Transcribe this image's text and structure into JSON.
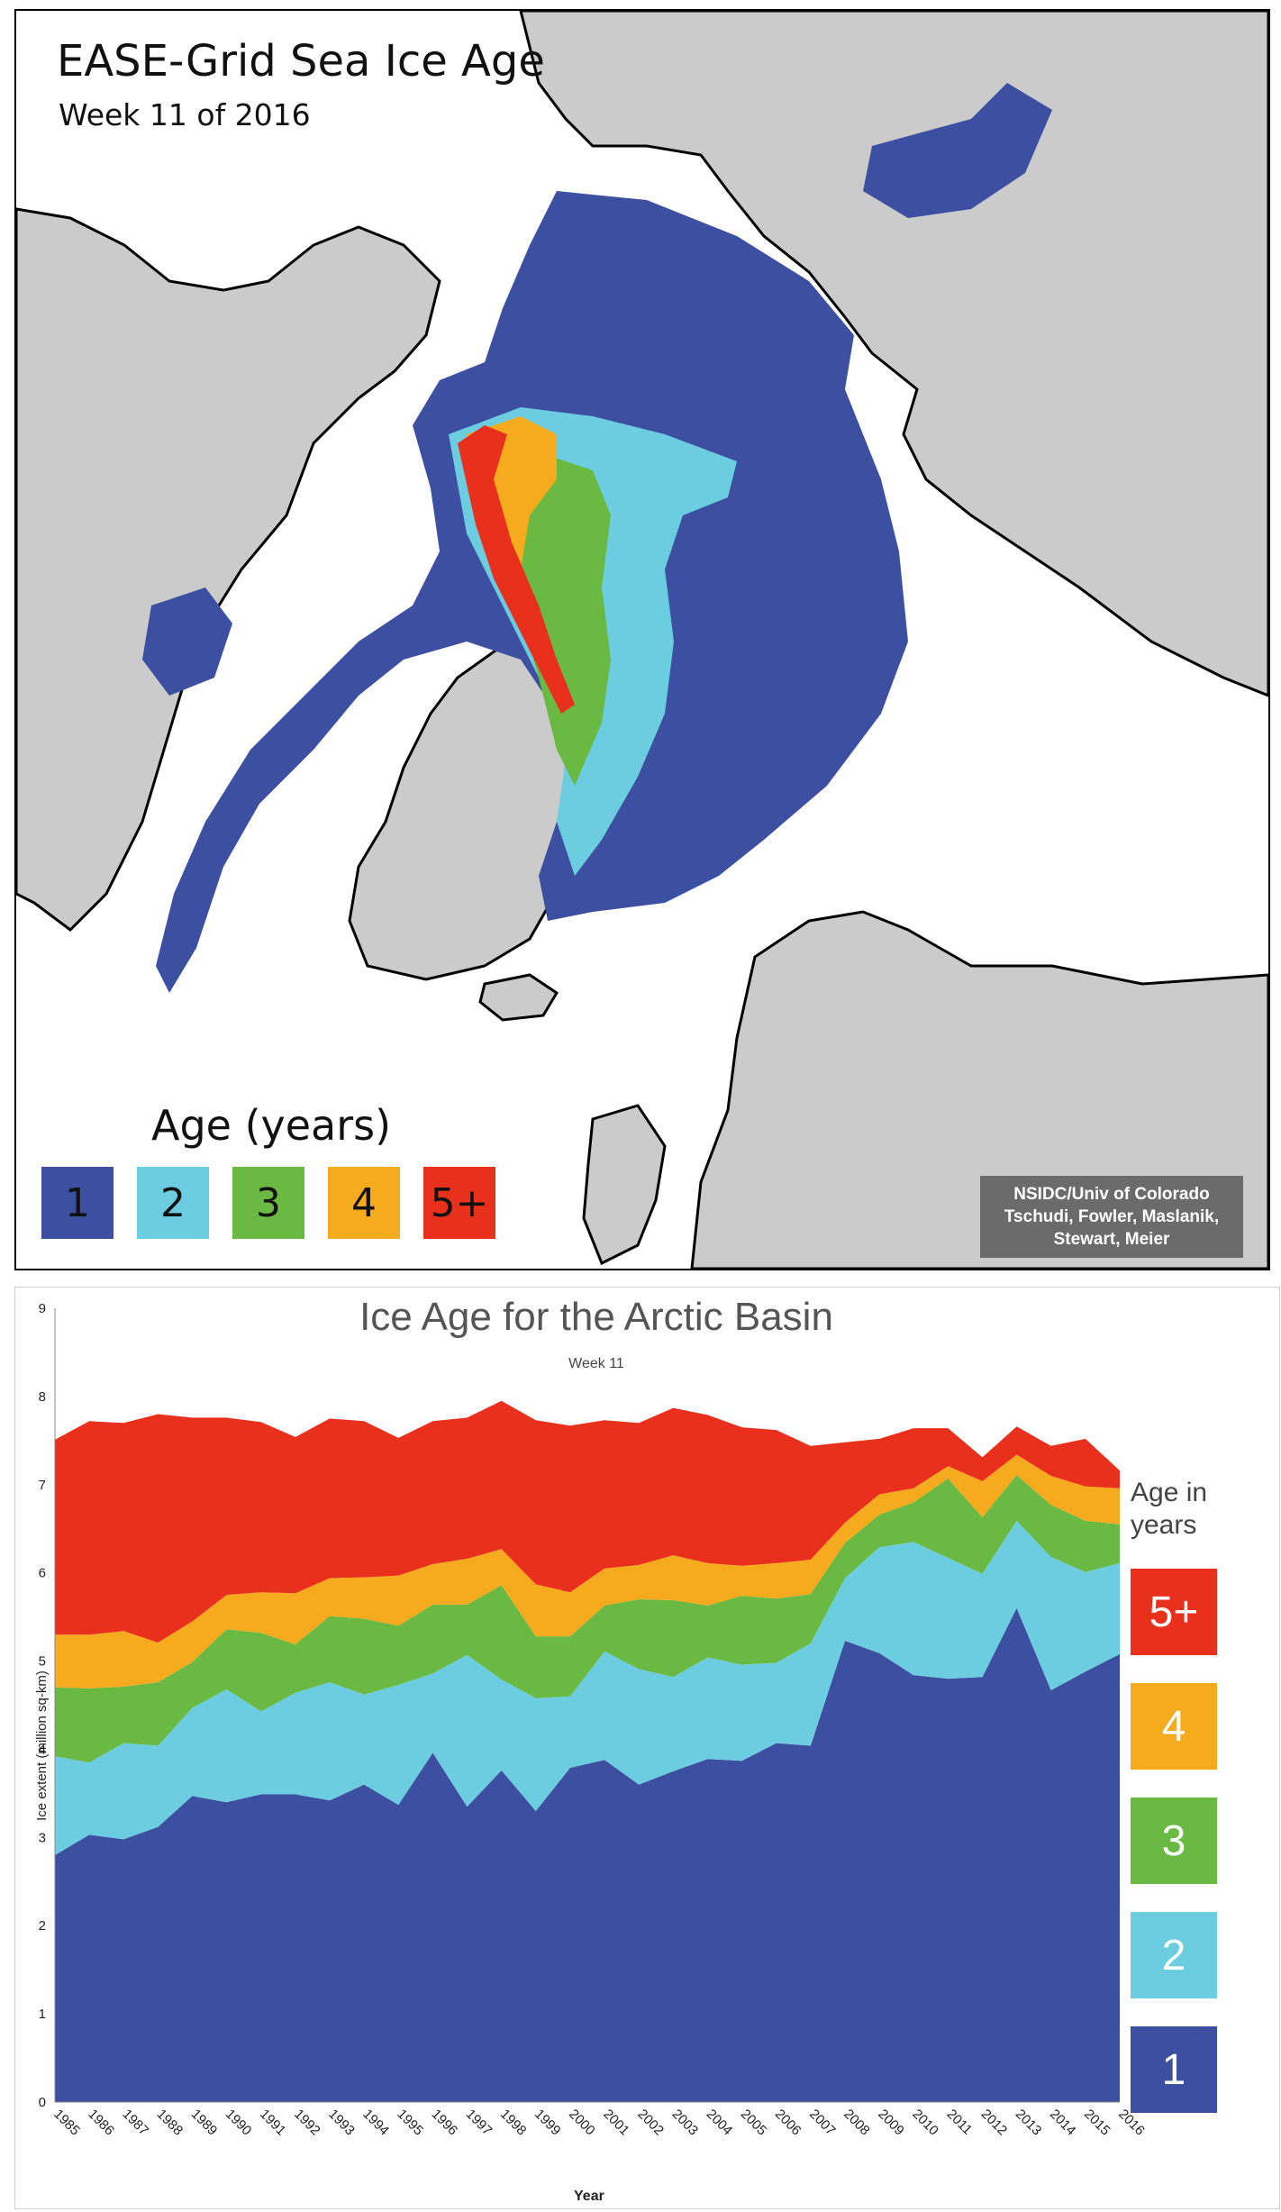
{
  "map": {
    "title": "EASE-Grid Sea Ice Age",
    "subtitle": "Week 11 of 2016",
    "legend_title": "Age (years)",
    "legend": [
      {
        "label": "1",
        "color": "#3c4fa0"
      },
      {
        "label": "2",
        "color": "#6ccde0"
      },
      {
        "label": "3",
        "color": "#6ab943"
      },
      {
        "label": "4",
        "color": "#f6aa1e"
      },
      {
        "label": "5+",
        "color": "#e9301c"
      }
    ],
    "credit_lines": [
      "NSIDC/Univ of Colorado",
      "Tschudi, Fowler, Maslanik,",
      "Stewart, Meier"
    ]
  },
  "chart_data": {
    "type": "area",
    "stacked": true,
    "title": "Ice Age for the Arctic Basin",
    "subtitle": "Week 11",
    "xlabel": "Year",
    "ylabel": "Ice extent (million sq-km)",
    "ylim": [
      0,
      9
    ],
    "yticks": [
      "0",
      "1",
      "2",
      "3",
      "4",
      "5",
      "6",
      "7",
      "8",
      "9"
    ],
    "x": [
      "1985",
      "1986",
      "1987",
      "1988",
      "1989",
      "1990",
      "1991",
      "1992",
      "1993",
      "1994",
      "1995",
      "1996",
      "1997",
      "1998",
      "1999",
      "2000",
      "2001",
      "2002",
      "2003",
      "2004",
      "2005",
      "2006",
      "2007",
      "2008",
      "2009",
      "2010",
      "2011",
      "2012",
      "2013",
      "2014",
      "2015",
      "2016"
    ],
    "legend_title": "Age in years",
    "series": [
      {
        "name": "1",
        "color": "#3c4fa0",
        "values": [
          2.8,
          3.03,
          2.98,
          3.12,
          3.47,
          3.4,
          3.49,
          3.49,
          3.42,
          3.6,
          3.37,
          3.96,
          3.35,
          3.76,
          3.3,
          3.79,
          3.88,
          3.6,
          3.75,
          3.89,
          3.87,
          4.07,
          4.04,
          5.23,
          5.09,
          4.84,
          4.8,
          4.82,
          5.6,
          4.67,
          4.88,
          5.08
        ]
      },
      {
        "name": "2",
        "color": "#6ccde0",
        "values": [
          1.12,
          0.82,
          1.09,
          0.92,
          1.0,
          1.28,
          0.94,
          1.15,
          1.34,
          1.02,
          1.36,
          0.9,
          1.72,
          1.03,
          1.28,
          0.81,
          1.23,
          1.31,
          1.07,
          1.15,
          1.09,
          0.91,
          1.16,
          0.71,
          1.2,
          1.51,
          1.37,
          1.17,
          0.99,
          1.51,
          1.13,
          1.03
        ]
      },
      {
        "name": "3",
        "color": "#6ab943",
        "values": [
          0.78,
          0.84,
          0.64,
          0.72,
          0.52,
          0.68,
          0.89,
          0.55,
          0.75,
          0.86,
          0.67,
          0.78,
          0.57,
          1.07,
          0.7,
          0.68,
          0.52,
          0.79,
          0.87,
          0.59,
          0.78,
          0.73,
          0.56,
          0.4,
          0.37,
          0.45,
          0.9,
          0.64,
          0.52,
          0.59,
          0.58,
          0.44
        ]
      },
      {
        "name": "4",
        "color": "#f6aa1e",
        "values": [
          0.6,
          0.61,
          0.63,
          0.45,
          0.46,
          0.39,
          0.46,
          0.58,
          0.43,
          0.47,
          0.57,
          0.46,
          0.52,
          0.41,
          0.59,
          0.5,
          0.42,
          0.39,
          0.51,
          0.48,
          0.34,
          0.4,
          0.39,
          0.23,
          0.23,
          0.16,
          0.14,
          0.41,
          0.23,
          0.33,
          0.39,
          0.41
        ]
      },
      {
        "name": "5+",
        "color": "#e9301c",
        "values": [
          2.21,
          2.42,
          2.36,
          2.59,
          2.31,
          2.01,
          1.93,
          1.77,
          1.81,
          1.77,
          1.56,
          1.62,
          1.6,
          1.68,
          1.86,
          1.89,
          1.68,
          1.61,
          1.67,
          1.68,
          1.57,
          1.51,
          1.29,
          0.91,
          0.63,
          0.68,
          0.43,
          0.27,
          0.32,
          0.34,
          0.54,
          0.2
        ]
      }
    ]
  }
}
